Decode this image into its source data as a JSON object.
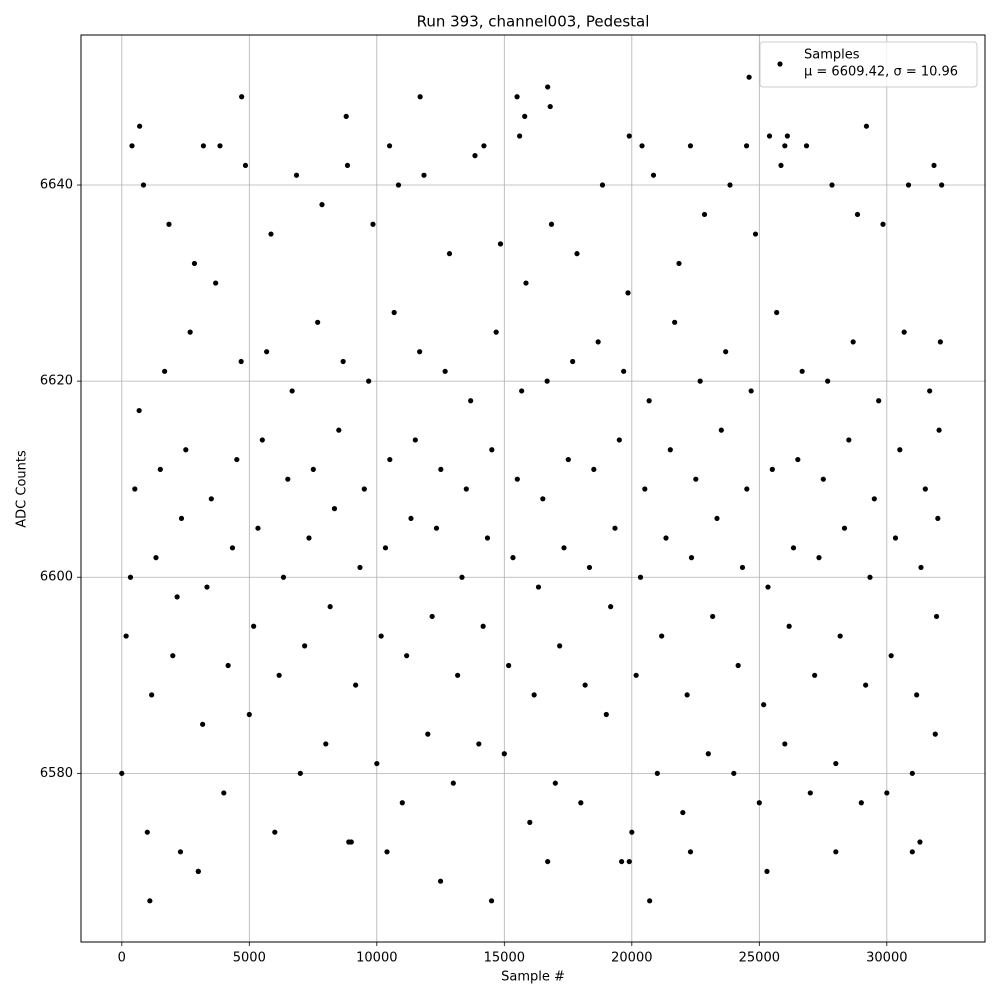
{
  "chart_data": {
    "type": "scatter",
    "title": "Run 393, channel003, Pedestal",
    "x_label": "Sample #",
    "y_label": "ADC Counts",
    "legend_note": "μ = 6609.42, σ = 10.96",
    "legend_position": "upper right",
    "grid": true,
    "xlim": [
      -1600,
      33850
    ],
    "ylim": [
      6562.8,
      6655.3
    ],
    "xticks": [
      0,
      5000,
      10000,
      15000,
      20000,
      25000,
      30000
    ],
    "yticks": [
      6580,
      6600,
      6620,
      6640
    ],
    "series": [
      {
        "name": "Samples",
        "color": "#000000",
        "x": [
          0,
          170,
          340,
          510,
          680,
          850,
          1000,
          1170,
          1340,
          1510,
          1680,
          1850,
          2000,
          2170,
          2340,
          2510,
          2680,
          2850,
          3000,
          3170,
          3340,
          3510,
          3680,
          3850,
          4000,
          4170,
          4340,
          4510,
          4680,
          4850,
          5000,
          5170,
          5340,
          5510,
          5680,
          5850,
          6000,
          6170,
          6340,
          6510,
          6680,
          6850,
          7000,
          7170,
          7340,
          7510,
          7680,
          7850,
          8000,
          8170,
          8340,
          8510,
          8680,
          8850,
          9000,
          9170,
          9340,
          9510,
          9680,
          9850,
          10000,
          10170,
          10340,
          10510,
          10680,
          10850,
          11000,
          11170,
          11340,
          11510,
          11680,
          11850,
          12000,
          12170,
          12340,
          12510,
          12680,
          12850,
          13000,
          13170,
          13340,
          13510,
          13680,
          13850,
          14000,
          14170,
          14340,
          14510,
          14680,
          14850,
          15000,
          15170,
          15340,
          15510,
          15680,
          15850,
          16000,
          16170,
          16340,
          16510,
          16680,
          16850,
          17000,
          17170,
          17340,
          17510,
          17680,
          17850,
          18000,
          18170,
          18340,
          18510,
          18680,
          18850,
          19000,
          19170,
          19340,
          19510,
          19680,
          19850,
          20000,
          20170,
          20340,
          20510,
          20680,
          20850,
          21000,
          21170,
          21340,
          21510,
          21680,
          21850,
          22000,
          22170,
          22340,
          22510,
          22680,
          22850,
          23000,
          23170,
          23340,
          23510,
          23680,
          23850,
          24000,
          24170,
          24340,
          24510,
          24680,
          24850,
          25000,
          25170,
          25340,
          25510,
          25680,
          25850,
          26000,
          26170,
          26340,
          26510,
          26680,
          26850,
          27000,
          27170,
          27340,
          27510,
          27680,
          27850,
          28000,
          28170,
          28340,
          28510,
          28680,
          28850,
          29000,
          29170,
          29340,
          29510,
          29680,
          29850,
          30000,
          30170,
          30340,
          30510,
          30680,
          30850,
          31000,
          31170,
          31340,
          31510,
          31680,
          31850,
          31900,
          31950,
          32000,
          32050,
          32100,
          32150,
          1100,
          14500,
          20700,
          12500,
          3000,
          25300,
          16700,
          19600,
          19900,
          31000,
          2300,
          10400,
          22300,
          28000,
          31300,
          8900,
          4700,
          11700,
          15500,
          16700,
          24600,
          16800,
          8800,
          15800,
          700,
          29200,
          15600,
          19900,
          25400,
          26100,
          400,
          3200,
          10500,
          14200,
          20400,
          22300,
          24500,
          26000
        ],
        "values": [
          6580,
          6594,
          6600,
          6609,
          6617,
          6640,
          6574,
          6588,
          6602,
          6611,
          6621,
          6636,
          6592,
          6598,
          6606,
          6613,
          6625,
          6632,
          6570,
          6585,
          6599,
          6608,
          6630,
          6644,
          6578,
          6591,
          6603,
          6612,
          6622,
          6642,
          6586,
          6595,
          6605,
          6614,
          6623,
          6635,
          6574,
          6590,
          6600,
          6610,
          6619,
          6641,
          6580,
          6593,
          6604,
          6611,
          6626,
          6638,
          6583,
          6597,
          6607,
          6615,
          6622,
          6642,
          6573,
          6589,
          6601,
          6609,
          6620,
          6636,
          6581,
          6594,
          6603,
          6612,
          6627,
          6640,
          6577,
          6592,
          6606,
          6614,
          6623,
          6641,
          6584,
          6596,
          6605,
          6611,
          6621,
          6633,
          6579,
          6590,
          6600,
          6609,
          6618,
          6643,
          6583,
          6595,
          6604,
          6613,
          6625,
          6634,
          6582,
          6591,
          6602,
          6610,
          6619,
          6630,
          6575,
          6588,
          6599,
          6608,
          6620,
          6636,
          6579,
          6593,
          6603,
          6612,
          6622,
          6633,
          6577,
          6589,
          6601,
          6611,
          6624,
          6640,
          6586,
          6597,
          6605,
          6614,
          6621,
          6629,
          6574,
          6590,
          6600,
          6609,
          6618,
          6641,
          6580,
          6594,
          6604,
          6613,
          6626,
          6632,
          6576,
          6588,
          6602,
          6610,
          6620,
          6637,
          6582,
          6596,
          6606,
          6615,
          6623,
          6640,
          6580,
          6591,
          6601,
          6609,
          6619,
          6635,
          6577,
          6587,
          6599,
          6611,
          6627,
          6642,
          6583,
          6595,
          6603,
          6612,
          6621,
          6644,
          6578,
          6590,
          6602,
          6610,
          6620,
          6640,
          6581,
          6594,
          6605,
          6614,
          6624,
          6637,
          6577,
          6589,
          6600,
          6608,
          6618,
          6636,
          6578,
          6592,
          6604,
          6613,
          6625,
          6640,
          6580,
          6588,
          6601,
          6609,
          6619,
          6642,
          6584,
          6596,
          6606,
          6615,
          6624,
          6640,
          6567,
          6567,
          6567,
          6569,
          6570,
          6570,
          6571,
          6571,
          6571,
          6572,
          6572,
          6572,
          6572,
          6572,
          6573,
          6573,
          6649,
          6649,
          6649,
          6650,
          6651,
          6648,
          6647,
          6647,
          6646,
          6646,
          6645,
          6645,
          6645,
          6645,
          6644,
          6644,
          6644,
          6644,
          6644,
          6644,
          6644,
          6644
        ]
      }
    ]
  }
}
